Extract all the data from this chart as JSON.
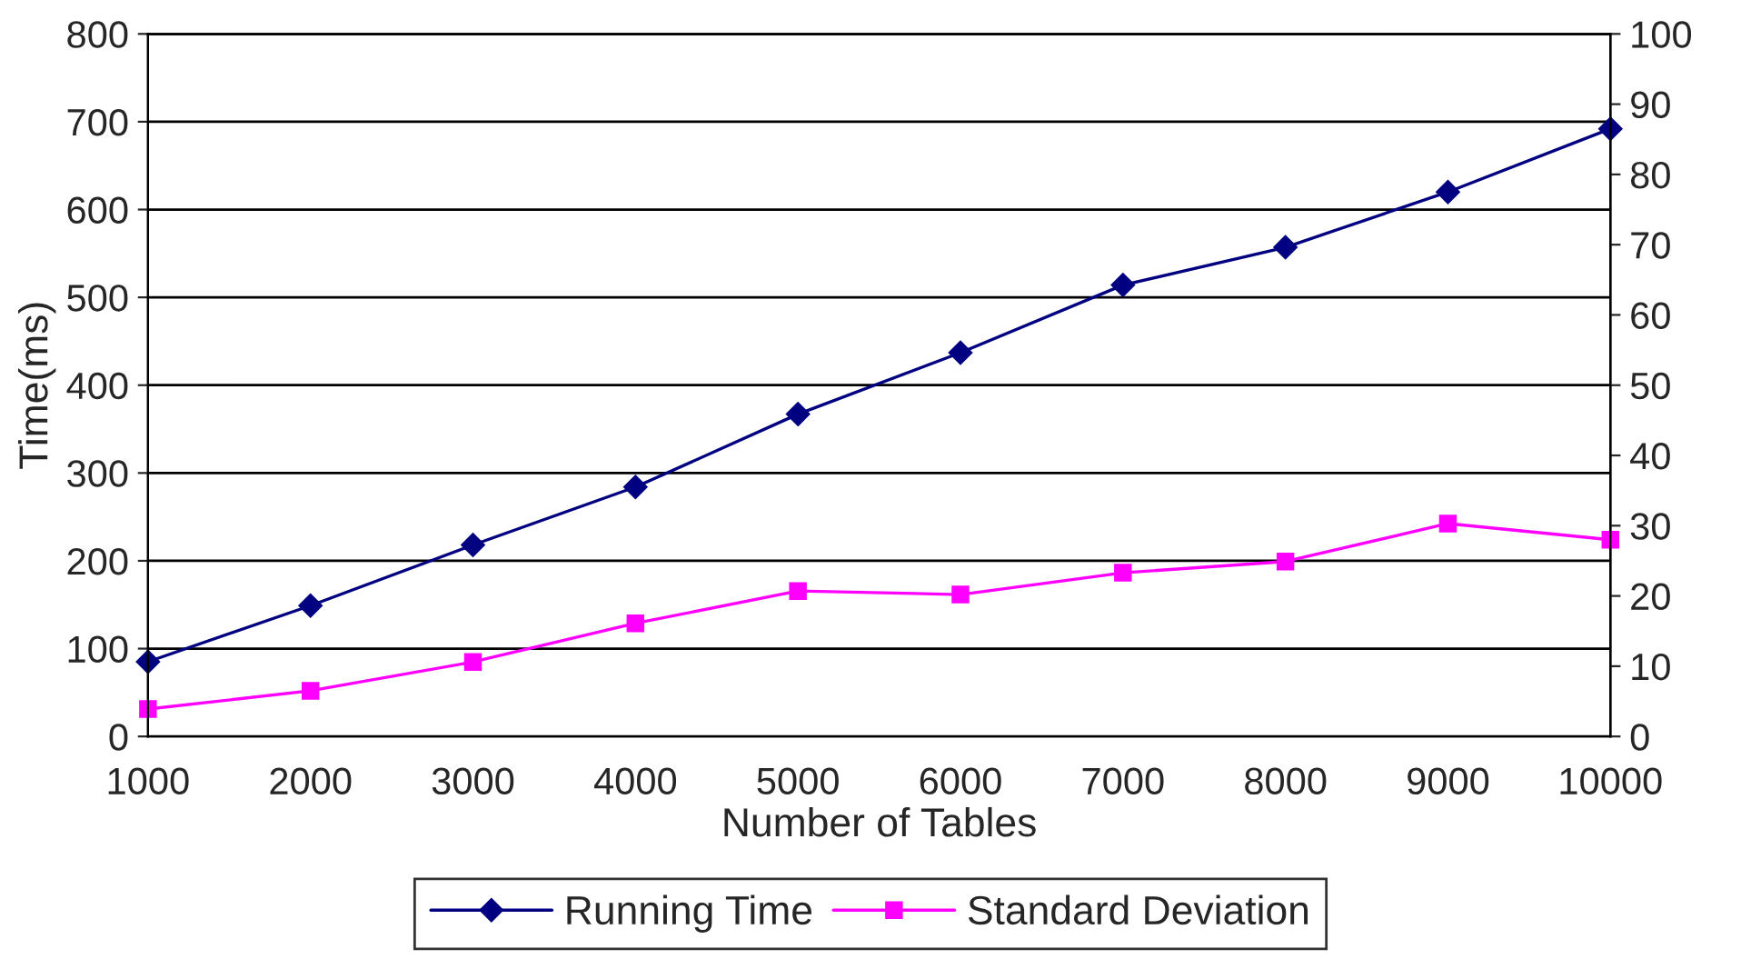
{
  "chart_data": {
    "type": "line",
    "xlabel": "Number of Tables",
    "ylabel": "Time(ms)",
    "x": [
      1000,
      2000,
      3000,
      4000,
      5000,
      6000,
      7000,
      8000,
      9000,
      10000
    ],
    "xlim": [
      1000,
      10000
    ],
    "xticks": [
      1000,
      2000,
      3000,
      4000,
      5000,
      6000,
      7000,
      8000,
      9000,
      10000
    ],
    "ylim": [
      0,
      800
    ],
    "yticks": [
      0,
      100,
      200,
      300,
      400,
      500,
      600,
      700,
      800
    ],
    "y2lim": [
      0,
      100
    ],
    "y2ticks": [
      0,
      10,
      20,
      30,
      40,
      50,
      60,
      70,
      80,
      90,
      100
    ],
    "grid": "y",
    "legend": "bottom",
    "line_style": "solid",
    "series": [
      {
        "name": "Running Time",
        "color": "#000080",
        "marker": "diamond",
        "values": [
          85,
          149,
          218,
          284,
          367,
          437,
          514,
          557,
          620,
          692
        ]
      },
      {
        "name": "Standard Deviation",
        "color": "#ff00ff",
        "marker": "square",
        "axis": "y2",
        "values": [
          3.9,
          6.5,
          10.6,
          16.1,
          20.7,
          20.2,
          23.3,
          24.9,
          30.3,
          28.0
        ]
      }
    ]
  }
}
